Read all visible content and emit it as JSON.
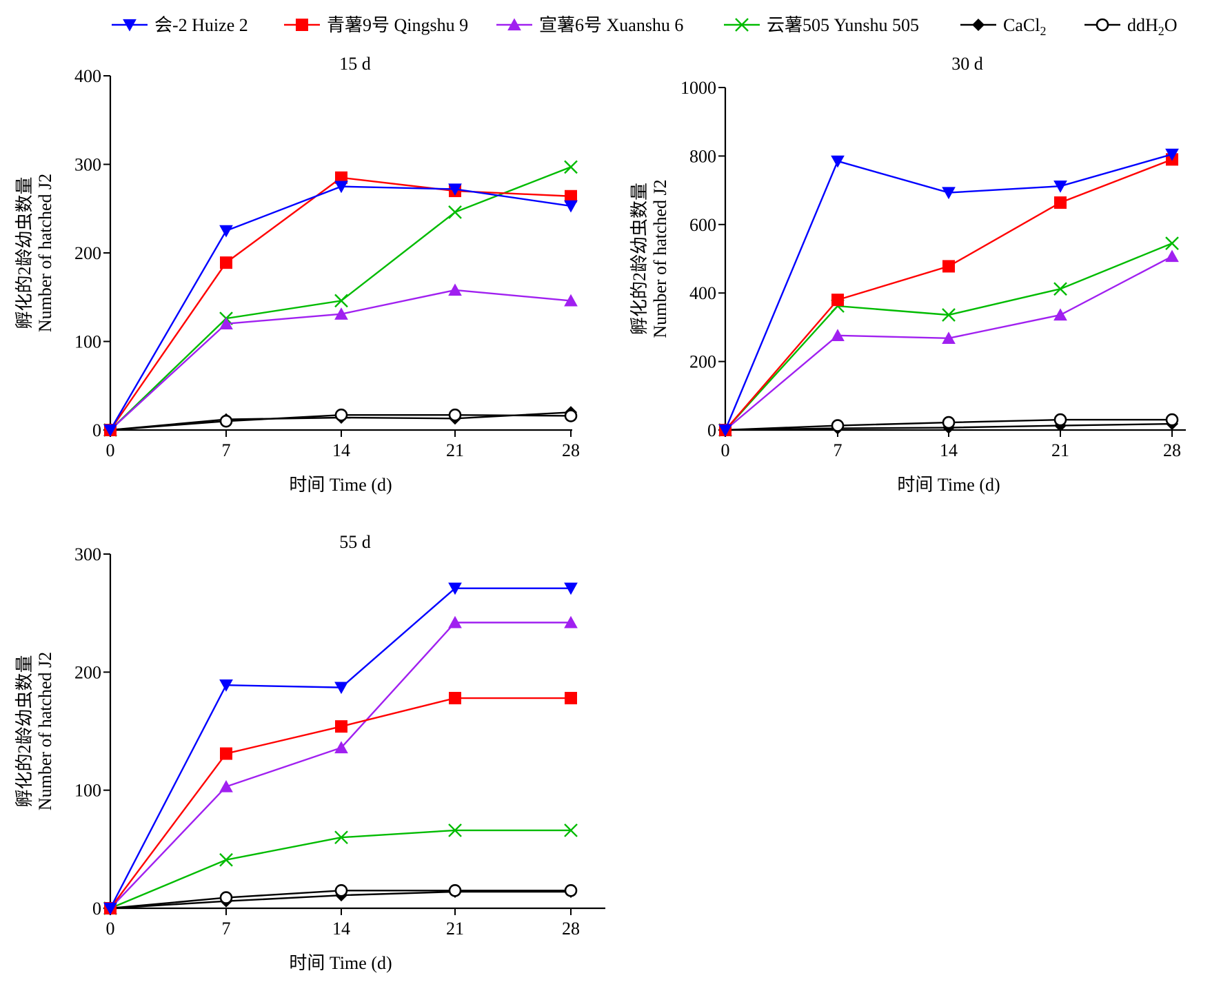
{
  "legend": [
    {
      "key": "huize2",
      "label": "会-2 Huize 2",
      "color": "#0000FF",
      "marker": "triangle-down"
    },
    {
      "key": "qingshu9",
      "label": "青薯9号 Qingshu 9",
      "color": "#FF0000",
      "marker": "square"
    },
    {
      "key": "xuanshu6",
      "label": "宣薯6号 Xuanshu 6",
      "color": "#A020F0",
      "marker": "triangle-up"
    },
    {
      "key": "yunshu505",
      "label": "云薯505 Yunshu 505",
      "color": "#00BB00",
      "marker": "x"
    },
    {
      "key": "cacl2",
      "label": "CaCl",
      "label_sub": "2",
      "color": "#000000",
      "marker": "diamond"
    },
    {
      "key": "ddh2o",
      "label": "ddH",
      "label_sub": "2",
      "label_tail": "O",
      "color": "#000000",
      "marker": "circle-open"
    }
  ],
  "chart_data": [
    {
      "type": "line",
      "title": "15 d",
      "xlabel": "时间 Time (d)",
      "ylabel_cn": "孵化的2龄幼虫数量",
      "ylabel_en": "Number of hatched J2",
      "x": [
        0,
        7,
        14,
        21,
        28
      ],
      "xticks": [
        "0",
        "7",
        "14",
        "21",
        "28"
      ],
      "ylim": [
        0,
        400
      ],
      "yticks": [
        0,
        100,
        200,
        300,
        400
      ],
      "series": [
        {
          "key": "huize2",
          "values": [
            0,
            225,
            275,
            272,
            253
          ]
        },
        {
          "key": "qingshu9",
          "values": [
            0,
            189,
            285,
            270,
            264
          ]
        },
        {
          "key": "xuanshu6",
          "values": [
            0,
            120,
            131,
            158,
            146
          ]
        },
        {
          "key": "yunshu505",
          "values": [
            0,
            126,
            146,
            246,
            297
          ]
        },
        {
          "key": "cacl2",
          "values": [
            0,
            12,
            14,
            13,
            20
          ]
        },
        {
          "key": "ddh2o",
          "values": [
            0,
            10,
            17,
            17,
            16
          ]
        }
      ]
    },
    {
      "type": "line",
      "title": "30 d",
      "xlabel": "时间 Time (d)",
      "ylabel_cn": "孵化的2龄幼虫数量",
      "ylabel_en": "Number of hatched J2",
      "x": [
        0,
        7,
        14,
        21,
        28
      ],
      "xticks": [
        "0",
        "7",
        "14",
        "21",
        "28"
      ],
      "ylim": [
        0,
        1000
      ],
      "yticks": [
        0,
        200,
        400,
        600,
        800,
        1000
      ],
      "series": [
        {
          "key": "huize2",
          "values": [
            0,
            785,
            693,
            712,
            805
          ]
        },
        {
          "key": "qingshu9",
          "values": [
            0,
            380,
            478,
            664,
            790
          ]
        },
        {
          "key": "xuanshu6",
          "values": [
            0,
            276,
            268,
            336,
            507
          ]
        },
        {
          "key": "yunshu505",
          "values": [
            0,
            362,
            336,
            412,
            545
          ]
        },
        {
          "key": "cacl2",
          "values": [
            0,
            5,
            7,
            13,
            18
          ]
        },
        {
          "key": "ddh2o",
          "values": [
            0,
            13,
            22,
            30,
            30
          ]
        }
      ]
    },
    {
      "type": "line",
      "title": "55 d",
      "xlabel": "时间 Time (d)",
      "ylabel_cn": "孵化的2龄幼虫数量",
      "ylabel_en": "Number of hatched J2",
      "x": [
        0,
        7,
        14,
        21,
        28
      ],
      "xticks": [
        "0",
        "7",
        "14",
        "21",
        "28"
      ],
      "ylim": [
        0,
        300
      ],
      "yticks": [
        0,
        100,
        200,
        300
      ],
      "series": [
        {
          "key": "huize2",
          "values": [
            0,
            189,
            187,
            271,
            271
          ]
        },
        {
          "key": "qingshu9",
          "values": [
            0,
            131,
            154,
            178,
            178
          ]
        },
        {
          "key": "xuanshu6",
          "values": [
            0,
            103,
            136,
            242,
            242
          ]
        },
        {
          "key": "yunshu505",
          "values": [
            0,
            41,
            60,
            66,
            66
          ]
        },
        {
          "key": "cacl2",
          "values": [
            0,
            6,
            11,
            14,
            14
          ]
        },
        {
          "key": "ddh2o",
          "values": [
            0,
            9,
            15,
            15,
            15
          ]
        }
      ]
    }
  ]
}
